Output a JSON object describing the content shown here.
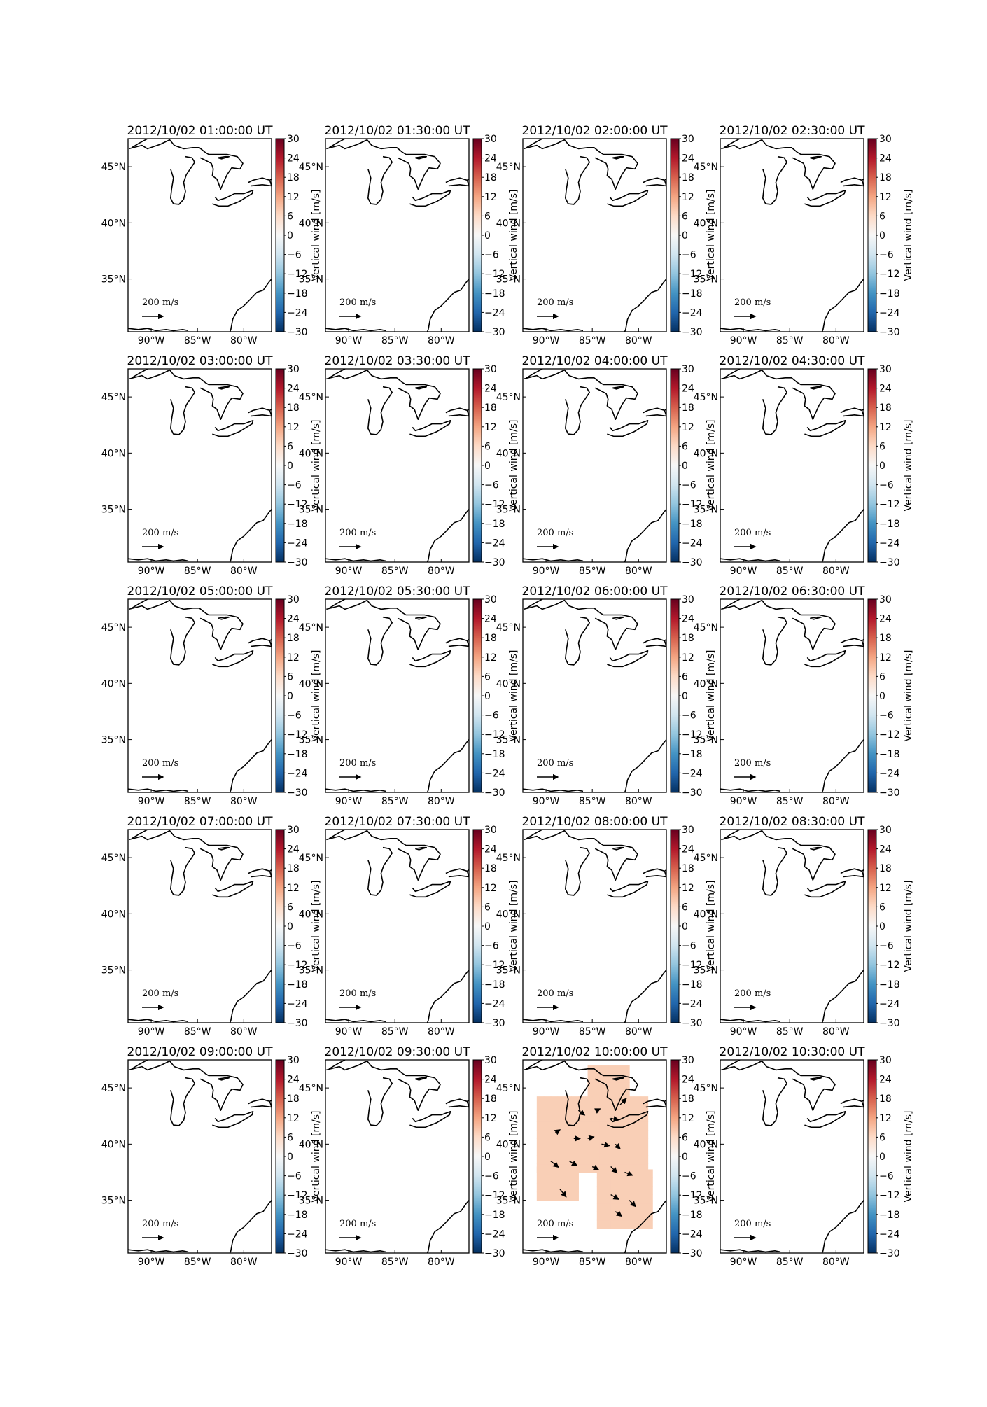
{
  "chart_data": {
    "type": "heatmap",
    "description_kind": "small-multiple map panels of vertical wind with wind vectors",
    "colorbar": {
      "label": "Vertical wind [m/s]",
      "ticks": [
        30,
        24,
        18,
        12,
        6,
        0,
        -6,
        -12,
        -18,
        -24,
        -30
      ],
      "tick_labels": [
        "30",
        "24",
        "18",
        "12",
        "6",
        "0",
        "−06",
        "−12",
        "−18",
        "−24",
        "−30"
      ],
      "range": [
        -30,
        30
      ],
      "colormap": "RdBu_r",
      "colors": [
        "#67001f",
        "#b2182b",
        "#d6604d",
        "#f4a582",
        "#fddbc7",
        "#f7f7f7",
        "#d1e5f0",
        "#92c5de",
        "#4393c3",
        "#2166ac",
        "#053061"
      ]
    },
    "x_ticks": [
      "90°W",
      "85°W",
      "80°W"
    ],
    "y_ticks": [
      "45°N",
      "40°N",
      "35°N"
    ],
    "x_tick_values": [
      -90,
      -85,
      -80
    ],
    "y_tick_values": [
      45,
      40,
      35
    ],
    "lon_range": [
      -92.5,
      -77
    ],
    "lat_range": [
      30.3,
      47.5
    ],
    "vector_scale_label": "200 m/s",
    "panels": [
      {
        "title": "2012/10/02 01:00:00 UT",
        "has_data": false
      },
      {
        "title": "2012/10/02 01:30:00 UT",
        "has_data": false
      },
      {
        "title": "2012/10/02 02:00:00 UT",
        "has_data": false
      },
      {
        "title": "2012/10/02 02:30:00 UT",
        "has_data": false
      },
      {
        "title": "2012/10/02 03:00:00 UT",
        "has_data": false
      },
      {
        "title": "2012/10/02 03:30:00 UT",
        "has_data": false
      },
      {
        "title": "2012/10/02 04:00:00 UT",
        "has_data": false
      },
      {
        "title": "2012/10/02 04:30:00 UT",
        "has_data": false
      },
      {
        "title": "2012/10/02 05:00:00 UT",
        "has_data": false
      },
      {
        "title": "2012/10/02 05:30:00 UT",
        "has_data": false
      },
      {
        "title": "2012/10/02 06:00:00 UT",
        "has_data": false
      },
      {
        "title": "2012/10/02 06:30:00 UT",
        "has_data": false
      },
      {
        "title": "2012/10/02 07:00:00 UT",
        "has_data": false
      },
      {
        "title": "2012/10/02 07:30:00 UT",
        "has_data": false
      },
      {
        "title": "2012/10/02 08:00:00 UT",
        "has_data": false
      },
      {
        "title": "2012/10/02 08:30:00 UT",
        "has_data": false
      },
      {
        "title": "2012/10/02 09:00:00 UT",
        "has_data": false
      },
      {
        "title": "2012/10/02 09:30:00 UT",
        "has_data": false
      },
      {
        "title": "2012/10/02 10:00:00 UT",
        "has_data": true,
        "fill_color": "#f9cfb6",
        "vertical_wind_value": 6
      },
      {
        "title": "2012/10/02 10:30:00 UT",
        "has_data": false
      }
    ]
  }
}
